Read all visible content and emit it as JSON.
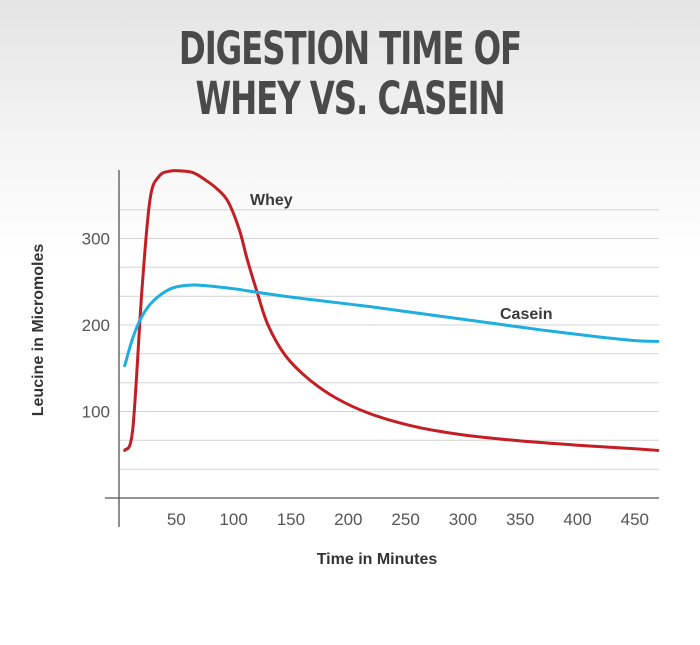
{
  "chart_data": {
    "type": "line",
    "title": "DIGESTION TIME OF WHEY VS. CASEIN",
    "title_lines": [
      "DIGESTION TIME OF",
      "WHEY VS. CASEIN"
    ],
    "xlabel": "Time in Minutes",
    "ylabel": "Leucine in Micromoles",
    "x_ticks": [
      50,
      100,
      150,
      200,
      250,
      300,
      350,
      400,
      450
    ],
    "y_ticks": [
      100,
      200,
      300
    ],
    "xlim": [
      0,
      470
    ],
    "ylim": [
      0,
      380
    ],
    "grid": true,
    "series": [
      {
        "name": "Whey",
        "color": "#c41e24",
        "x": [
          5,
          12,
          20,
          27,
          35,
          45,
          55,
          65,
          75,
          85,
          95,
          105,
          112,
          120,
          130,
          145,
          165,
          190,
          220,
          260,
          300,
          350,
          400,
          450,
          470
        ],
        "y": [
          55,
          80,
          240,
          345,
          372,
          378,
          378,
          376,
          368,
          358,
          343,
          310,
          275,
          240,
          200,
          165,
          138,
          115,
          97,
          82,
          73,
          66,
          61,
          57,
          55
        ]
      },
      {
        "name": "Casein",
        "color": "#1eaee0",
        "x": [
          5,
          12,
          20,
          30,
          45,
          60,
          70,
          80,
          100,
          130,
          170,
          220,
          270,
          320,
          370,
          420,
          450,
          470
        ],
        "y": [
          153,
          185,
          210,
          228,
          242,
          246,
          246,
          245,
          242,
          236,
          229,
          221,
          212,
          203,
          194,
          186,
          182,
          181
        ]
      }
    ],
    "annotations": [
      "Whey",
      "Casein"
    ]
  }
}
